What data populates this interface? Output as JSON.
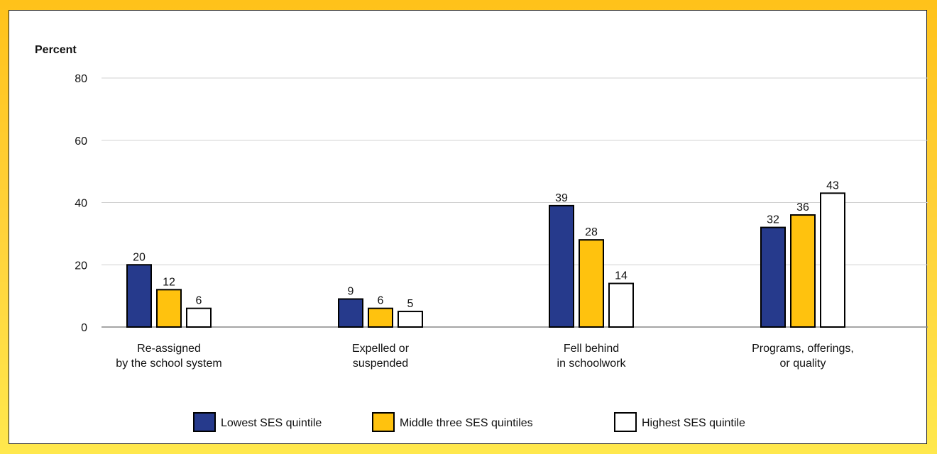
{
  "chart_data": {
    "type": "bar",
    "ylabel": "Percent",
    "xlabel": "",
    "ylim": [
      0,
      80
    ],
    "yticks": [
      0,
      20,
      40,
      60,
      80
    ],
    "grid": true,
    "legend_position": "bottom",
    "categories": [
      [
        "Re-assigned",
        "by the school system"
      ],
      [
        "Expelled or",
        "suspended"
      ],
      [
        "Fell behind",
        "in schoolwork"
      ],
      [
        "Programs, offerings,",
        "or quality"
      ]
    ],
    "series": [
      {
        "name": "Lowest SES quintile",
        "color": "#263A8C",
        "values": [
          20,
          9,
          39,
          32
        ]
      },
      {
        "name": "Middle three SES quintiles",
        "color": "#FFC20E",
        "values": [
          12,
          6,
          28,
          36
        ]
      },
      {
        "name": "Highest SES quintile",
        "color": "#FFFFFF",
        "values": [
          6,
          5,
          14,
          43
        ]
      }
    ]
  }
}
